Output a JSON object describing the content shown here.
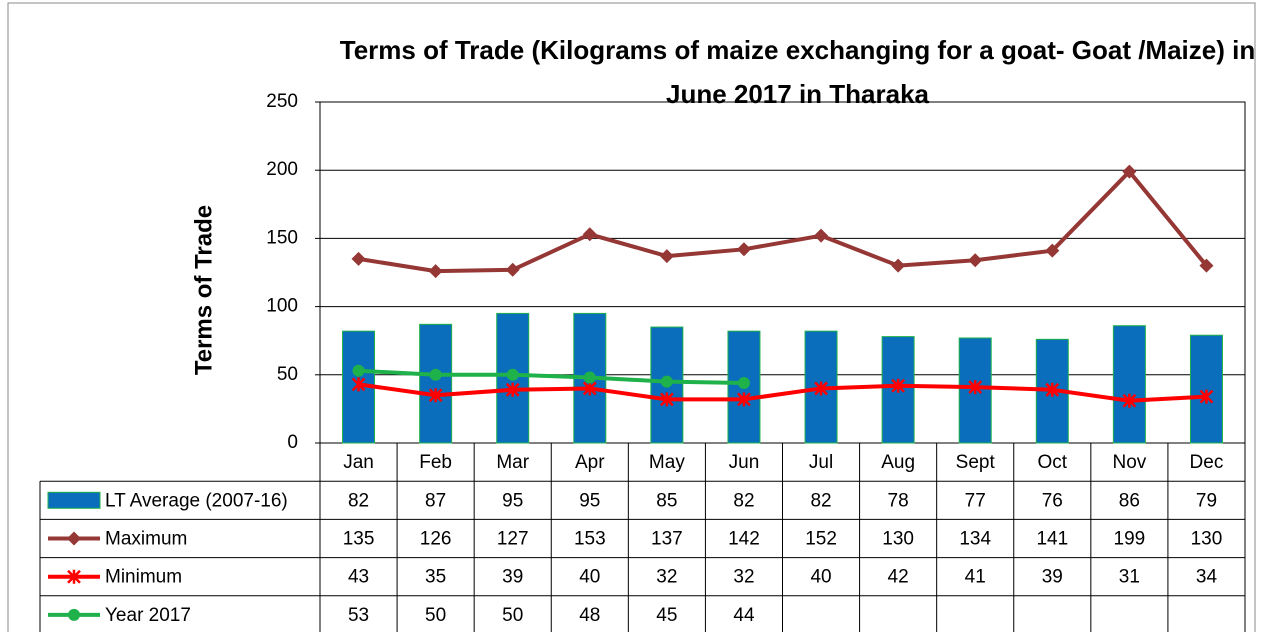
{
  "chart_data": {
    "type": "combo",
    "title": "Terms of Trade (Kilograms of maize exchanging for a goat- Goat /Maize) in June 2017 in Tharaka",
    "y_label": "Terms of Trade",
    "categories": [
      "Jan",
      "Feb",
      "Mar",
      "Apr",
      "May",
      "Jun",
      "Jul",
      "Aug",
      "Sept",
      "Oct",
      "Nov",
      "Dec"
    ],
    "ylim": [
      0,
      250
    ],
    "yticks": [
      0,
      50,
      100,
      150,
      200,
      250
    ],
    "grid": true,
    "series": [
      {
        "name": "LT Average (2007-16)",
        "type": "bar",
        "color": "#0a6ebd",
        "values": [
          82,
          87,
          95,
          95,
          85,
          82,
          82,
          78,
          77,
          76,
          86,
          79
        ]
      },
      {
        "name": "Maximum",
        "type": "line",
        "marker": "diamond",
        "color": "#953735",
        "values": [
          135,
          126,
          127,
          153,
          137,
          142,
          152,
          130,
          134,
          141,
          199,
          130
        ]
      },
      {
        "name": "Minimum",
        "type": "line",
        "marker": "star",
        "color": "#ff0000",
        "values": [
          43,
          35,
          39,
          40,
          32,
          32,
          40,
          42,
          41,
          39,
          31,
          34
        ]
      },
      {
        "name": "Year 2017",
        "type": "line",
        "marker": "circle",
        "color": "#1fb14a",
        "values": [
          53,
          50,
          50,
          48,
          45,
          44,
          null,
          null,
          null,
          null,
          null,
          null
        ]
      }
    ]
  }
}
